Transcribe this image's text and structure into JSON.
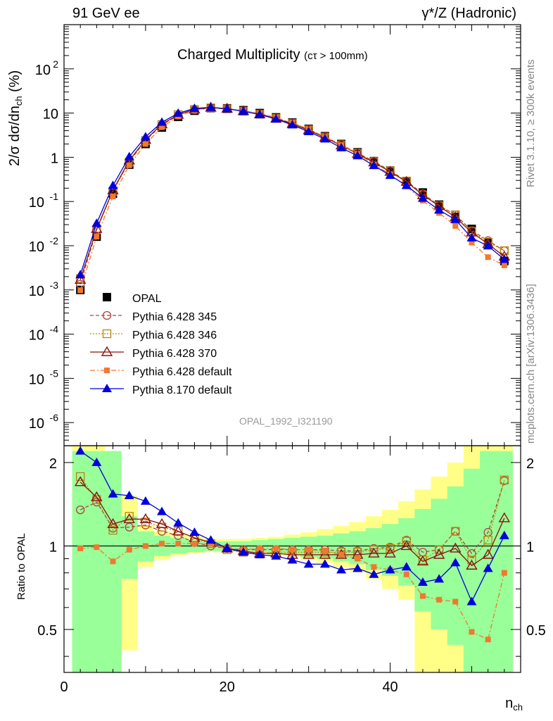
{
  "header": {
    "left": "91 GeV ee",
    "right": "γ*/Z (Hadronic)",
    "side_top": "Rivet 3.1.10, ≥ 300k events",
    "side_bottom": "mcplots.cern.ch [arXiv:1306.3436]",
    "watermark": "OPAL_1992_I321190"
  },
  "chart_data": [
    {
      "type": "scatter",
      "panel": "main",
      "title": "Charged Multiplicity",
      "title_suffix": "(cτ > 100mm)",
      "ylabel_main": "2/σ dσ/dn",
      "ylabel_sub": "ch",
      "ylabel_unit": "(%)",
      "xlabel_main": "n",
      "xlabel_sub": "ch",
      "yscale": "log",
      "ylim": [
        3e-07,
        1000
      ],
      "xlim": [
        0,
        56
      ],
      "x_ticks": [
        0,
        20,
        40
      ],
      "y_tick_labels": [
        "10^2",
        "10",
        "1",
        "10^-1",
        "10^-2",
        "10^-3",
        "10^-4",
        "10^-5",
        "10^-6"
      ],
      "legend_position": "middle-left",
      "x": [
        2,
        4,
        6,
        8,
        10,
        12,
        14,
        16,
        18,
        20,
        22,
        24,
        26,
        28,
        30,
        32,
        34,
        36,
        38,
        40,
        42,
        44,
        46,
        48,
        50,
        52,
        54
      ],
      "series": [
        {
          "name": "OPAL",
          "color": "#000000",
          "marker": "square-filled",
          "values": [
            0.001,
            0.016,
            0.15,
            0.68,
            2.0,
            4.7,
            8.2,
            11.3,
            12.9,
            12.8,
            11.6,
            10.0,
            8.0,
            6.1,
            4.4,
            3.0,
            2.0,
            1.3,
            0.82,
            0.5,
            0.28,
            0.16,
            0.085,
            0.045,
            0.024,
            0.012,
            0.0045
          ]
        },
        {
          "name": "Pythia 6.428 345",
          "color": "#b04040",
          "marker": "circle-open",
          "line": "dashed",
          "values": [
            0.00135,
            0.023,
            0.18,
            0.8,
            2.4,
            5.4,
            9.0,
            11.9,
            12.9,
            12.5,
            11.1,
            9.5,
            7.7,
            5.9,
            4.3,
            2.9,
            1.93,
            1.25,
            0.81,
            0.5,
            0.29,
            0.15,
            0.082,
            0.05,
            0.022,
            0.013,
            0.0077
          ]
        },
        {
          "name": "Pythia 6.428 346",
          "color": "#b8860b",
          "marker": "square-open",
          "line": "dotted",
          "values": [
            0.0018,
            0.023,
            0.17,
            0.78,
            2.4,
            5.5,
            9.2,
            12.1,
            13.1,
            12.4,
            11.0,
            9.4,
            7.6,
            5.8,
            4.2,
            2.85,
            1.9,
            1.24,
            0.8,
            0.49,
            0.29,
            0.14,
            0.08,
            0.05,
            0.021,
            0.012,
            0.0077
          ]
        },
        {
          "name": "Pythia 6.428 370",
          "color": "#8b1010",
          "marker": "triangle-open",
          "line": "solid",
          "values": [
            0.0017,
            0.024,
            0.18,
            0.85,
            2.5,
            5.6,
            9.2,
            12.1,
            13.3,
            12.6,
            11.1,
            9.4,
            7.5,
            5.7,
            4.1,
            2.8,
            1.85,
            1.2,
            0.77,
            0.47,
            0.28,
            0.14,
            0.079,
            0.044,
            0.02,
            0.011,
            0.0057
          ]
        },
        {
          "name": "Pythia 6.428 default",
          "color": "#f07830",
          "marker": "square-filled-small",
          "line": "dashdot",
          "values": [
            0.00098,
            0.016,
            0.13,
            0.66,
            2.0,
            4.8,
            8.4,
            11.6,
            13.1,
            12.5,
            11.3,
            9.8,
            7.9,
            6.0,
            4.3,
            2.9,
            1.9,
            1.2,
            0.69,
            0.41,
            0.22,
            0.105,
            0.055,
            0.028,
            0.0118,
            0.0055,
            0.0036
          ]
        },
        {
          "name": "Pythia 8.170 default",
          "color": "#0000dd",
          "marker": "triangle-filled",
          "line": "solid",
          "values": [
            0.0022,
            0.032,
            0.23,
            1.03,
            2.9,
            6.2,
            9.9,
            12.7,
            13.5,
            12.5,
            11.0,
            9.3,
            7.3,
            5.4,
            3.8,
            2.6,
            1.64,
            1.08,
            0.65,
            0.39,
            0.23,
            0.118,
            0.064,
            0.039,
            0.015,
            0.0099,
            0.0049
          ]
        }
      ]
    },
    {
      "type": "scatter",
      "panel": "ratio",
      "ylabel": "Ratio to OPAL",
      "yscale": "log",
      "ylim": [
        0.35,
        2.3
      ],
      "y_ticks": [
        0.5,
        1,
        2
      ],
      "x": [
        2,
        4,
        6,
        8,
        10,
        12,
        14,
        16,
        18,
        20,
        22,
        24,
        26,
        28,
        30,
        32,
        34,
        36,
        38,
        40,
        42,
        44,
        46,
        48,
        50,
        52,
        54
      ],
      "bands": {
        "edges": [
          1,
          3,
          5,
          7,
          9,
          11,
          13,
          15,
          17,
          19,
          21,
          23,
          25,
          27,
          29,
          31,
          33,
          35,
          37,
          39,
          41,
          43,
          45,
          47,
          49,
          51,
          53,
          55
        ],
        "green_lo": [
          0.3,
          0.3,
          0.3,
          0.76,
          0.88,
          0.92,
          0.94,
          0.95,
          0.96,
          0.96,
          0.96,
          0.95,
          0.94,
          0.93,
          0.91,
          0.9,
          0.88,
          0.86,
          0.82,
          0.78,
          0.72,
          0.58,
          0.5,
          0.44,
          0.3,
          0.3,
          0.3
        ],
        "green_hi": [
          2.2,
          2.2,
          2.2,
          1.28,
          1.13,
          1.09,
          1.07,
          1.05,
          1.04,
          1.04,
          1.04,
          1.05,
          1.06,
          1.07,
          1.08,
          1.09,
          1.11,
          1.13,
          1.16,
          1.2,
          1.26,
          1.36,
          1.48,
          1.64,
          1.9,
          2.2,
          2.2
        ],
        "yellow_lo": [
          0.3,
          0.3,
          0.3,
          0.42,
          0.84,
          0.89,
          0.92,
          0.94,
          0.95,
          0.95,
          0.95,
          0.94,
          0.93,
          0.92,
          0.89,
          0.87,
          0.84,
          0.81,
          0.76,
          0.7,
          0.64,
          0.3,
          0.3,
          0.3,
          0.3,
          0.3,
          0.3
        ],
        "yellow_hi": [
          2.4,
          2.4,
          2.2,
          1.52,
          1.19,
          1.13,
          1.1,
          1.08,
          1.06,
          1.06,
          1.06,
          1.07,
          1.08,
          1.1,
          1.12,
          1.15,
          1.18,
          1.22,
          1.28,
          1.35,
          1.45,
          1.6,
          1.78,
          2.0,
          2.4,
          2.4,
          2.4
        ]
      },
      "series": [
        {
          "name": "Pythia 6.428 345",
          "color": "#b04040",
          "marker": "circle-open",
          "line": "dashed",
          "values": [
            1.35,
            1.44,
            1.16,
            1.17,
            1.19,
            1.13,
            1.09,
            1.03,
            1.0,
            0.98,
            0.97,
            0.97,
            0.97,
            0.97,
            0.97,
            0.97,
            0.96,
            0.96,
            0.98,
            0.99,
            1.05,
            0.95,
            0.97,
            1.13,
            0.94,
            1.12,
            1.72
          ]
        },
        {
          "name": "Pythia 6.428 346",
          "color": "#b8860b",
          "marker": "square-open",
          "line": "dotted",
          "values": [
            1.78,
            1.47,
            1.14,
            1.28,
            1.22,
            1.17,
            1.13,
            1.07,
            1.02,
            0.97,
            0.95,
            0.94,
            0.95,
            0.95,
            0.95,
            0.95,
            0.95,
            0.95,
            0.97,
            0.98,
            1.04,
            0.89,
            0.97,
            1.13,
            0.89,
            1.05,
            1.73
          ]
        },
        {
          "name": "Pythia 6.428 370",
          "color": "#8b1010",
          "marker": "triangle-open",
          "line": "solid",
          "values": [
            1.7,
            1.5,
            1.2,
            1.25,
            1.25,
            1.2,
            1.13,
            1.07,
            1.03,
            0.98,
            0.96,
            0.94,
            0.94,
            0.93,
            0.93,
            0.93,
            0.93,
            0.93,
            0.94,
            0.94,
            1.0,
            0.88,
            0.93,
            0.98,
            0.85,
            0.93,
            1.26
          ]
        },
        {
          "name": "Pythia 6.428 default",
          "color": "#f07830",
          "marker": "square-filled-small",
          "line": "dashdot",
          "values": [
            0.98,
            0.99,
            0.88,
            0.97,
            1.0,
            1.02,
            1.02,
            1.02,
            1.02,
            0.98,
            0.97,
            0.98,
            0.98,
            0.97,
            0.97,
            0.96,
            0.93,
            0.9,
            0.84,
            0.82,
            0.79,
            0.66,
            0.64,
            0.63,
            0.49,
            0.46,
            0.8
          ]
        },
        {
          "name": "Pythia 8.170 default",
          "color": "#0000dd",
          "marker": "triangle-filled",
          "line": "solid",
          "values": [
            2.2,
            2.0,
            1.54,
            1.52,
            1.45,
            1.33,
            1.21,
            1.12,
            1.05,
            0.98,
            0.95,
            0.93,
            0.92,
            0.89,
            0.86,
            0.86,
            0.82,
            0.83,
            0.79,
            0.82,
            0.84,
            0.74,
            0.76,
            0.87,
            0.63,
            0.83,
            1.09
          ]
        }
      ]
    }
  ]
}
